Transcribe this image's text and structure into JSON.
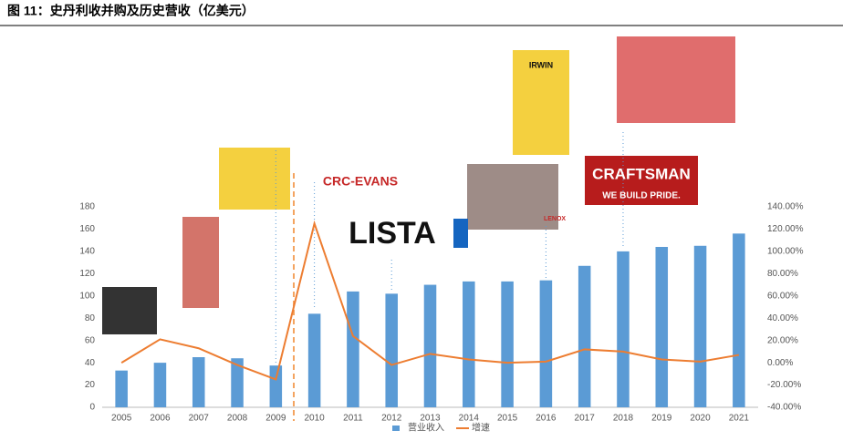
{
  "chart_data": {
    "type": "bar_line",
    "title": "图 11：史丹利收并购及历史营收（亿美元）",
    "categories": [
      "2005",
      "2006",
      "2007",
      "2008",
      "2009",
      "2010",
      "2011",
      "2012",
      "2013",
      "2014",
      "2015",
      "2016",
      "2017",
      "2018",
      "2019",
      "2020",
      "2021"
    ],
    "series": [
      {
        "name": "营业收入",
        "color": "#5b9bd5",
        "kind": "bar",
        "values": [
          33,
          40,
          45,
          44,
          37.5,
          84,
          104,
          102,
          110,
          113,
          113,
          114,
          127,
          140,
          144,
          145,
          156
        ]
      },
      {
        "name": "增速",
        "color": "#ed7d31",
        "kind": "line",
        "axis": "y2",
        "values": [
          0,
          21,
          13,
          -2,
          -15,
          125,
          24,
          -2,
          8,
          3,
          0,
          1,
          12,
          10,
          3,
          1,
          7
        ]
      }
    ],
    "ylim": [
      0,
      180
    ],
    "yticks": [
      0,
      20,
      40,
      60,
      80,
      100,
      120,
      140,
      160,
      180
    ],
    "y2lim": [
      -40,
      140
    ],
    "y2ticks": [
      {
        "value": -40,
        "label": "-40.00%"
      },
      {
        "value": -20,
        "label": "-20.00%"
      },
      {
        "value": 0,
        "label": "0.00%"
      },
      {
        "value": 20,
        "label": "20.00%"
      },
      {
        "value": 40,
        "label": "40.00%"
      },
      {
        "value": 60,
        "label": "60.00%"
      },
      {
        "value": 80,
        "label": "80.00%"
      },
      {
        "value": 100,
        "label": "100.00%"
      },
      {
        "value": 120,
        "label": "120.00%"
      },
      {
        "value": 140,
        "label": "140.00%"
      }
    ],
    "annotations": [
      "CRC-EVANS",
      "LISTA",
      "CRAFTSMAN",
      "WE BUILD PRIDE.",
      "IRWIN",
      "LENOX"
    ]
  }
}
